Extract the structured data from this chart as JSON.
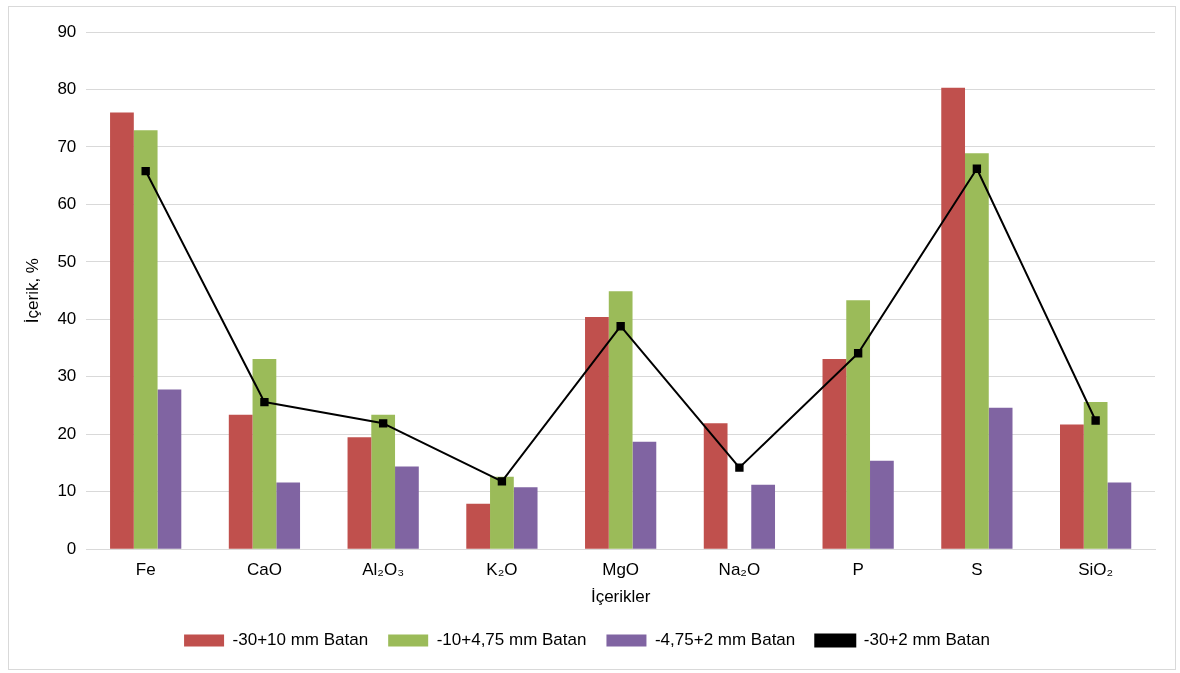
{
  "chart_data": {
    "type": "bar",
    "xlabel": "İçerikler",
    "ylabel": "İçerik, %",
    "categories": [
      "Fe",
      "CaO",
      "Al₂O₃",
      "K₂O",
      "MgO",
      "Na₂O",
      "P",
      "S",
      "SiO₂"
    ],
    "series": [
      {
        "name": "-30+10 mm Batan",
        "color": "#c0504d",
        "values": [
          76.0,
          23.4,
          19.5,
          7.9,
          40.4,
          21.9,
          33.1,
          80.3,
          21.7
        ]
      },
      {
        "name": "-10+4,75 mm Batan",
        "color": "#9bbb59",
        "values": [
          72.9,
          33.1,
          23.4,
          12.6,
          44.9,
          null,
          43.3,
          68.9,
          25.6
        ]
      },
      {
        "name": "-4,75+2 mm Batan",
        "color": "#8064a2",
        "values": [
          27.8,
          11.6,
          14.4,
          10.8,
          18.7,
          11.2,
          15.4,
          24.6,
          11.6
        ]
      },
      {
        "name": "-30+2 mm Batan",
        "color": "#000000",
        "type": "line",
        "marker": "square",
        "values": [
          65.8,
          25.6,
          21.9,
          11.8,
          38.8,
          14.2,
          34.1,
          66.2,
          22.4
        ]
      }
    ],
    "ylim": [
      0,
      90
    ],
    "yticks": [
      0,
      10,
      20,
      30,
      40,
      50,
      60,
      70,
      80,
      90
    ],
    "grid": "y",
    "legend": "bottom"
  }
}
